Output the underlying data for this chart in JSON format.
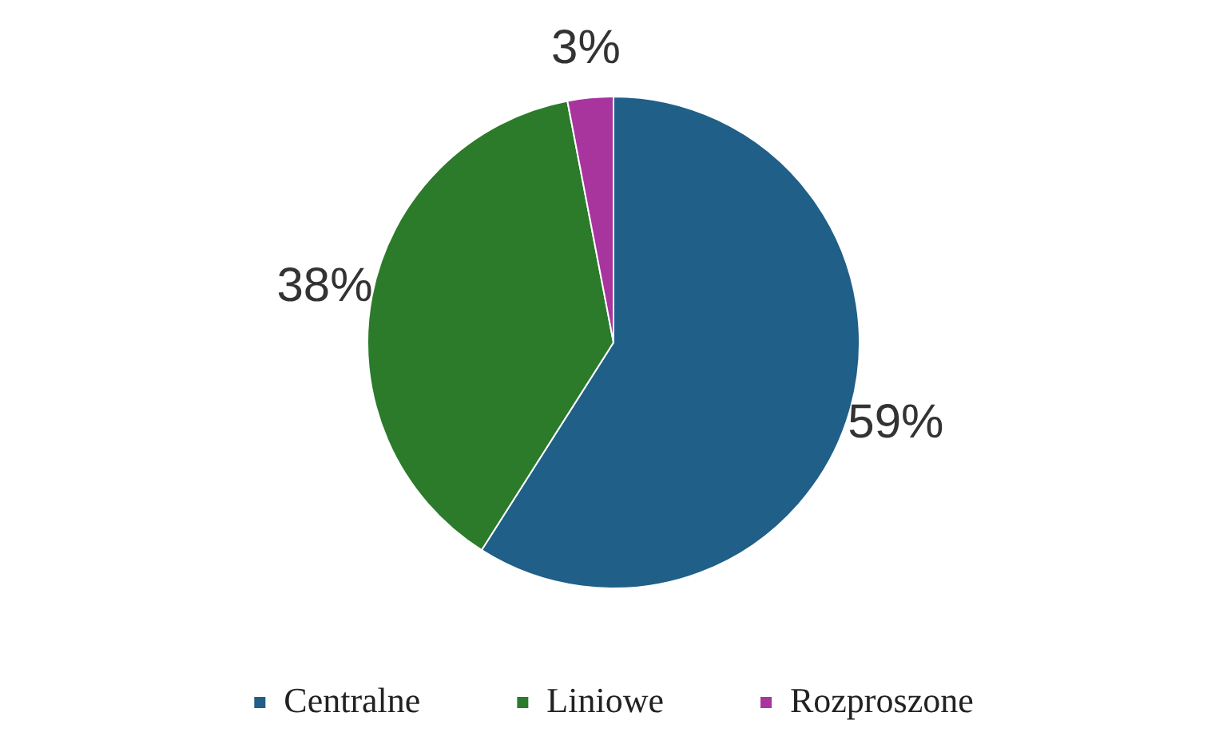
{
  "chart_data": {
    "type": "pie",
    "categories": [
      "Centralne",
      "Liniowe",
      "Rozproszone"
    ],
    "values": [
      59,
      38,
      3
    ],
    "colors": [
      "#1f5f88",
      "#2b7b2b",
      "#a8359e"
    ],
    "value_labels": [
      "59%",
      "38%",
      "3%"
    ],
    "legend": "bottom"
  }
}
